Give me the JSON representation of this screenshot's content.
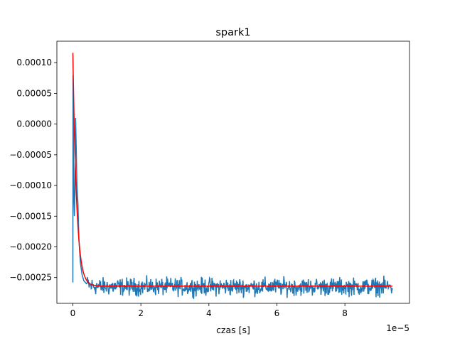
{
  "chart_data": {
    "type": "line",
    "title": "spark1",
    "xlabel": "czas [s]",
    "ylabel": "",
    "x_offset_text": "1e−5",
    "xlim": [
      -0.47,
      9.9
    ],
    "ylim": [
      -0.000292,
      0.000135
    ],
    "x_scale_multiplier": 1e-05,
    "x_ticks": [
      0,
      2,
      4,
      6,
      8
    ],
    "x_tick_labels": [
      "0",
      "2",
      "4",
      "6",
      "8"
    ],
    "y_ticks": [
      0.0001,
      5e-05,
      0.0,
      -5e-05,
      -0.0001,
      -0.00015,
      -0.0002,
      -0.00025
    ],
    "y_tick_labels": [
      "0.00010",
      "0.00005",
      "0.00000",
      "−0.00005",
      "−0.00010",
      "−0.00015",
      "−0.00020",
      "−0.00025"
    ],
    "grid": false,
    "legend": null,
    "series": [
      {
        "color": "#1f77b4",
        "kind": "noisy decaying signal",
        "x": [
          0.0,
          0.005,
          0.01,
          0.015,
          0.02,
          0.03,
          0.045,
          0.06,
          0.08,
          0.1,
          0.12,
          0.15,
          0.18,
          0.22,
          0.27,
          0.32,
          0.4,
          0.5,
          0.65,
          0.8,
          1.0,
          2.0,
          3.0,
          4.0,
          5.0,
          6.0,
          7.0,
          8.0,
          9.4
        ],
        "y": [
          -0.000258,
          7.95e-05,
          6.5e-05,
          0.0,
          -5e-05,
          -0.00012,
          -0.00015,
          -0.00011,
          1e-05,
          -4e-05,
          -0.0001,
          -0.00013,
          -0.00019,
          -0.000225,
          -0.000245,
          -0.000255,
          -0.00026,
          -0.000263,
          -0.000264,
          -0.000265,
          -0.000265,
          -0.000265,
          -0.000265,
          -0.000265,
          -0.000265,
          -0.000265,
          -0.000265,
          -0.000265,
          -0.000265
        ],
        "noise_amplitude": 7e-06
      },
      {
        "color": "#ff0000",
        "kind": "exponential fit",
        "x_start": 0.0,
        "x_end": 9.4,
        "y_peak": 0.000116,
        "y_asymptote": -0.000264,
        "decay_time": 0.11
      }
    ]
  }
}
